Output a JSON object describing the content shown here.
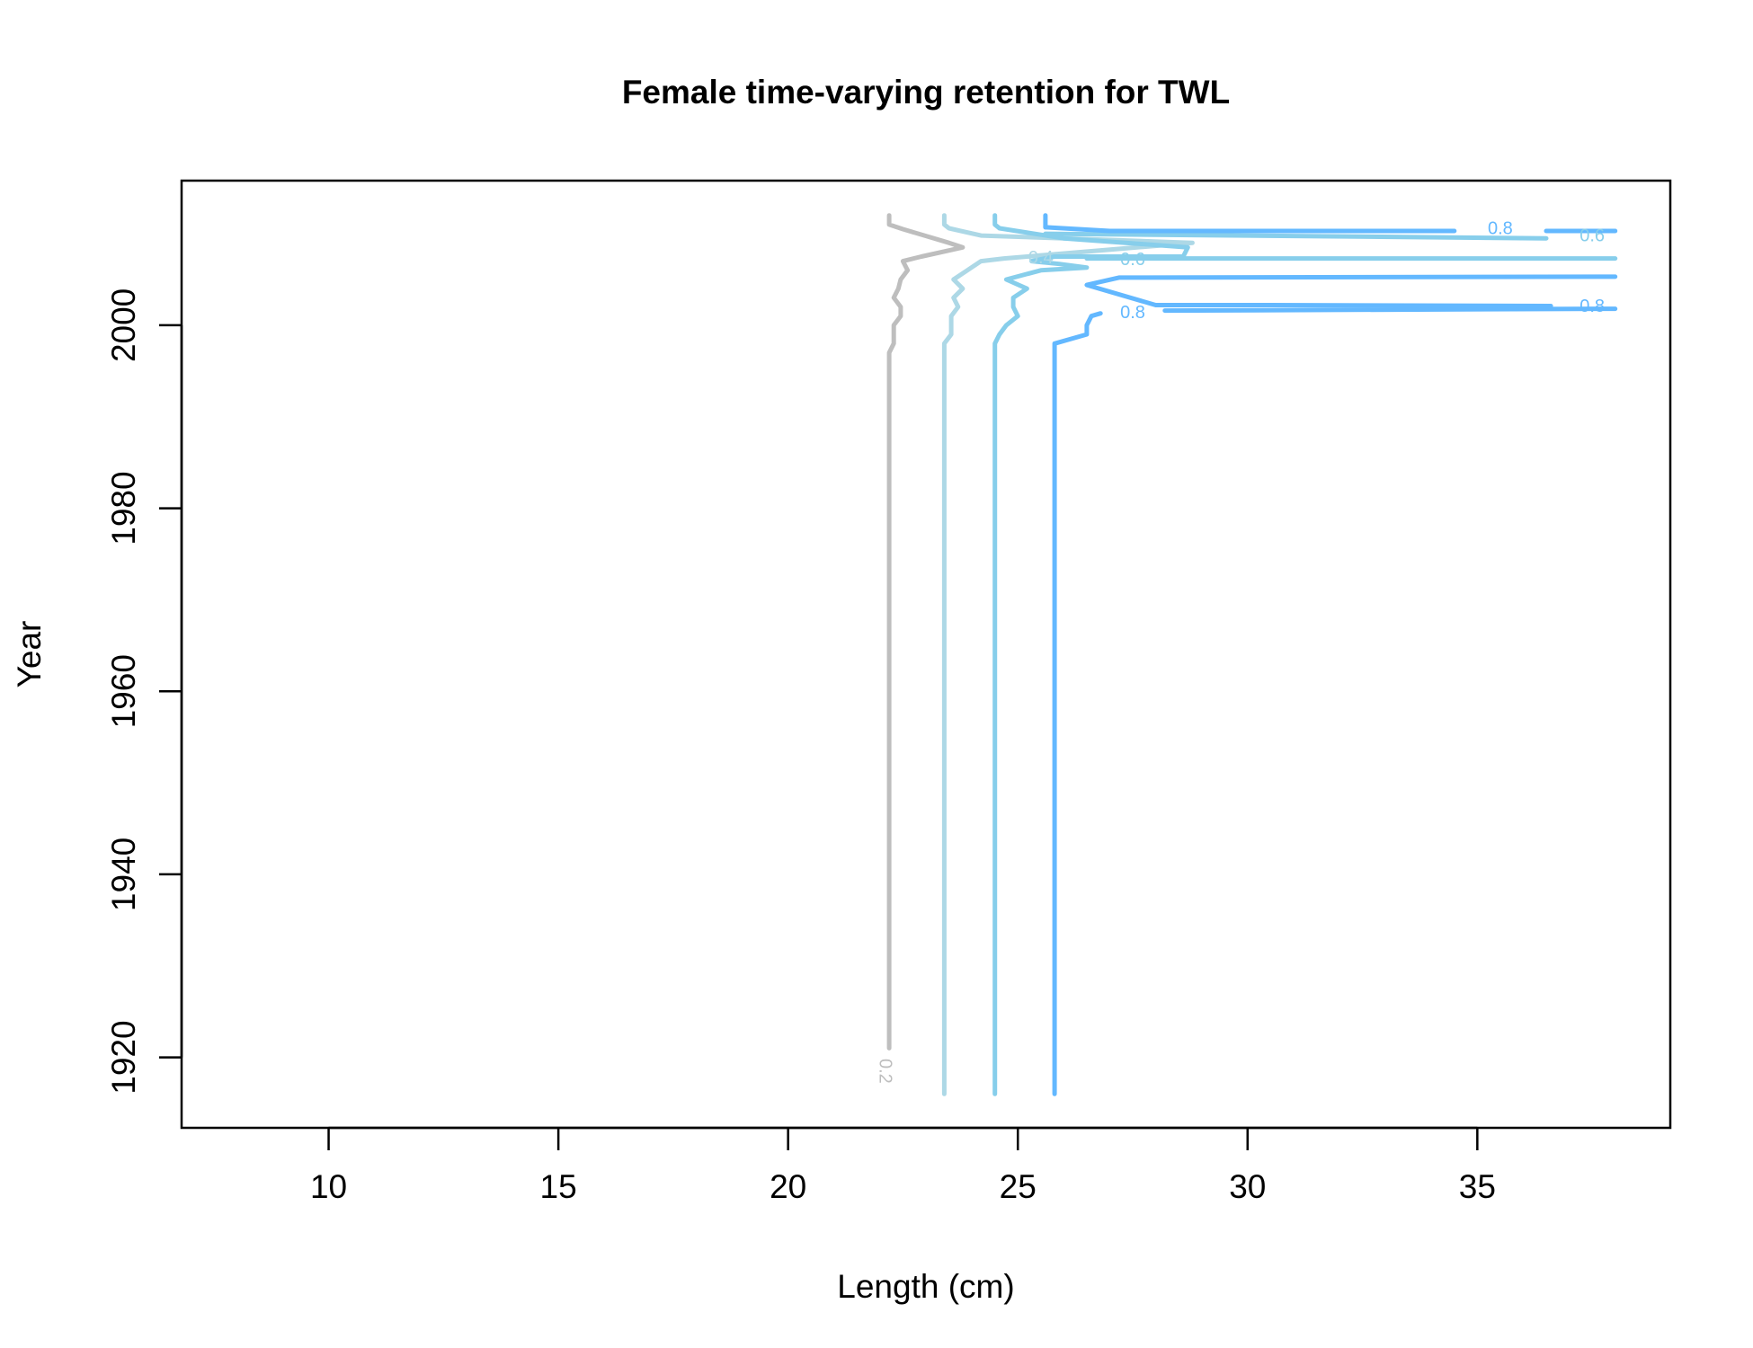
{
  "chart_data": {
    "type": "contour",
    "title": "Female time-varying retention for TWL",
    "xlabel": "Length (cm)",
    "ylabel": "Year",
    "xlim": [
      6.8,
      39.2
    ],
    "ylim": [
      1912.3,
      2015.8
    ],
    "x_ticks": [
      10,
      15,
      20,
      25,
      30,
      35
    ],
    "y_ticks": [
      1920,
      1940,
      1960,
      1980,
      2000
    ],
    "grid": false,
    "legend": "none",
    "series": [
      {
        "level": 0.2,
        "label_text": "0.2",
        "color": "#bebebe",
        "label_at": [
          22.1,
          1918.5
        ],
        "label_rotation": 90,
        "lines": [
          [
            [
              22.2,
              1921
            ],
            [
              22.2,
              1997
            ],
            [
              22.3,
              1998
            ],
            [
              22.3,
              2000
            ],
            [
              22.45,
              2001
            ],
            [
              22.45,
              2002
            ],
            [
              22.3,
              2003
            ],
            [
              22.4,
              2004
            ],
            [
              22.45,
              2005
            ],
            [
              22.6,
              2006
            ],
            [
              22.5,
              2007
            ],
            [
              22.9,
              2007.5
            ],
            [
              23.8,
              2008.5
            ],
            [
              23.5,
              2009
            ],
            [
              22.5,
              2010.5
            ],
            [
              22.2,
              2011
            ],
            [
              22.2,
              2012
            ]
          ]
        ]
      },
      {
        "level": 0.4,
        "label_text": "0.4",
        "color": "#add8e6",
        "label_at": [
          25.5,
          2007.3
        ],
        "label_rotation": 0,
        "lines": [
          [
            [
              23.4,
              1916
            ],
            [
              23.4,
              1998
            ],
            [
              23.55,
              1999
            ],
            [
              23.55,
              2001
            ],
            [
              23.7,
              2002
            ],
            [
              23.6,
              2003
            ],
            [
              23.8,
              2004
            ],
            [
              23.6,
              2005
            ],
            [
              23.9,
              2006
            ],
            [
              24.2,
              2007
            ],
            [
              24.7,
              2007.3
            ],
            [
              28.8,
              2009
            ],
            [
              24.2,
              2009.8
            ],
            [
              23.5,
              2010.6
            ],
            [
              23.4,
              2011
            ],
            [
              23.4,
              2012
            ]
          ]
        ]
      },
      {
        "level": 0.6,
        "label_text": "0.6",
        "color": "#87ceeb",
        "label_at": [
          27.5,
          2007.1
        ],
        "label_rotation": 0,
        "lines": [
          [
            [
              24.5,
              1916
            ],
            [
              24.5,
              1998
            ],
            [
              24.6,
              1999
            ],
            [
              24.75,
              2000
            ],
            [
              25.0,
              2001
            ],
            [
              24.9,
              2002
            ],
            [
              24.9,
              2003
            ],
            [
              25.2,
              2004
            ],
            [
              24.75,
              2005
            ],
            [
              25.5,
              2006
            ],
            [
              26.5,
              2006.3
            ],
            [
              25.9,
              2006.7
            ],
            [
              25.3,
              2007
            ],
            [
              25.8,
              2007.5
            ],
            [
              28.6,
              2007.5
            ],
            [
              28.7,
              2008.5
            ],
            [
              26.0,
              2009.5
            ],
            [
              24.6,
              2010.6
            ],
            [
              24.5,
              2011
            ],
            [
              24.5,
              2012
            ]
          ],
          [
            [
              26.5,
              2007.3
            ],
            [
              38.0,
              2007.3
            ]
          ],
          [
            [
              36.5,
              2009.5
            ],
            [
              25.6,
              2010
            ]
          ]
        ]
      },
      {
        "level": 0.8,
        "label_text": "0.8",
        "color": "#63b8ff",
        "label_at": [
          27.5,
          2001.3
        ],
        "label_rotation": 0,
        "lines": [
          [
            [
              25.8,
              1916
            ],
            [
              25.8,
              1998
            ],
            [
              26.5,
              1999
            ],
            [
              26.5,
              2000
            ],
            [
              26.6,
              2001
            ],
            [
              26.8,
              2001.3
            ]
          ],
          [
            [
              28.2,
              2001.6
            ],
            [
              38.0,
              2001.8
            ]
          ],
          [
            [
              36.6,
              2002.1
            ],
            [
              30.5,
              2002.2
            ],
            [
              28.0,
              2002.2
            ],
            [
              26.5,
              2004.4
            ],
            [
              27.2,
              2005.2
            ],
            [
              38.0,
              2005.3
            ]
          ],
          [
            [
              25.6,
              2010.7
            ],
            [
              27.0,
              2010.3
            ],
            [
              34.5,
              2010.3
            ]
          ],
          [
            [
              36.5,
              2010.3
            ],
            [
              38.0,
              2010.3
            ]
          ],
          [
            [
              25.6,
              2010.7
            ],
            [
              25.6,
              2012
            ]
          ]
        ]
      }
    ],
    "inline_labels": [
      {
        "text": "0.8",
        "color": "#63b8ff",
        "at": [
          35.5,
          2010.5
        ]
      },
      {
        "text": "0.6",
        "color": "#87ceeb",
        "at": [
          37.5,
          2009.7
        ]
      },
      {
        "text": "0.8",
        "color": "#63b8ff",
        "at": [
          37.5,
          2002.0
        ]
      }
    ]
  }
}
